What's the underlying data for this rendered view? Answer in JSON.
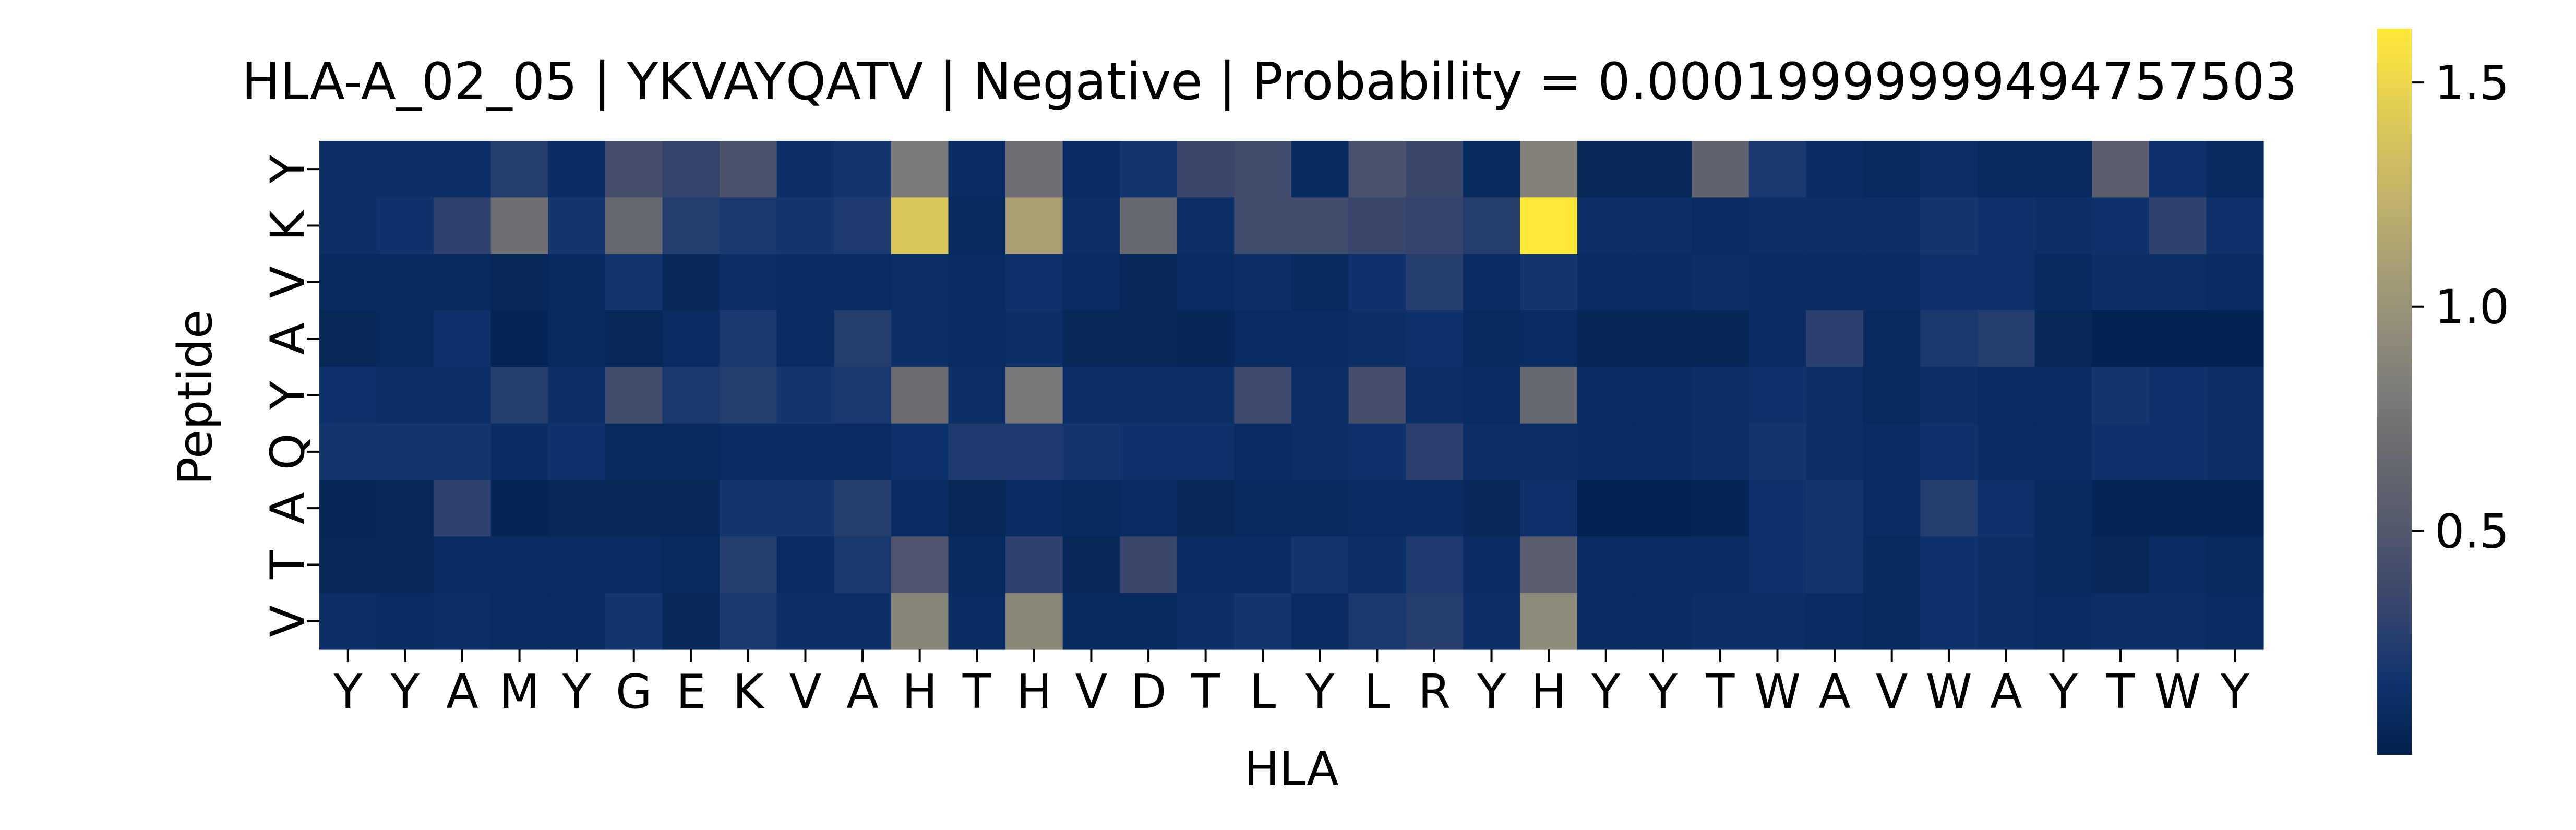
{
  "chart_data": {
    "type": "heatmap",
    "title": "HLA-A_02_05 | YKVAYQATV | Negative | Probability = 0.00019999999494757503",
    "xlabel": "HLA",
    "ylabel": "Peptide",
    "x_categories": [
      "Y",
      "Y",
      "A",
      "M",
      "Y",
      "G",
      "E",
      "K",
      "V",
      "A",
      "H",
      "T",
      "H",
      "V",
      "D",
      "T",
      "L",
      "Y",
      "L",
      "R",
      "Y",
      "H",
      "Y",
      "Y",
      "T",
      "W",
      "A",
      "V",
      "W",
      "A",
      "Y",
      "T",
      "W",
      "Y"
    ],
    "y_categories": [
      "Y",
      "K",
      "V",
      "A",
      "Y",
      "Q",
      "A",
      "T",
      "V"
    ],
    "colorbar": {
      "colormap": "cividis",
      "vmin": 0.0,
      "vmax": 1.62,
      "ticks": [
        0.5,
        1.0,
        1.5
      ],
      "tick_labels": [
        "0.5",
        "1.0",
        "1.5"
      ]
    },
    "grid": false,
    "values": [
      [
        0.12,
        0.12,
        0.12,
        0.25,
        0.1,
        0.42,
        0.32,
        0.45,
        0.12,
        0.18,
        0.8,
        0.1,
        0.72,
        0.1,
        0.18,
        0.35,
        0.4,
        0.08,
        0.45,
        0.35,
        0.08,
        0.85,
        0.06,
        0.06,
        0.6,
        0.2,
        0.1,
        0.08,
        0.12,
        0.08,
        0.08,
        0.55,
        0.15,
        0.08
      ],
      [
        0.12,
        0.15,
        0.3,
        0.72,
        0.18,
        0.65,
        0.25,
        0.2,
        0.18,
        0.22,
        1.4,
        0.08,
        1.1,
        0.12,
        0.65,
        0.12,
        0.4,
        0.4,
        0.35,
        0.32,
        0.25,
        1.62,
        0.12,
        0.12,
        0.1,
        0.12,
        0.12,
        0.12,
        0.18,
        0.15,
        0.12,
        0.15,
        0.3,
        0.15
      ],
      [
        0.08,
        0.08,
        0.08,
        0.06,
        0.08,
        0.18,
        0.06,
        0.12,
        0.1,
        0.1,
        0.12,
        0.1,
        0.15,
        0.1,
        0.06,
        0.1,
        0.12,
        0.08,
        0.15,
        0.25,
        0.1,
        0.18,
        0.1,
        0.1,
        0.12,
        0.1,
        0.1,
        0.1,
        0.15,
        0.15,
        0.08,
        0.12,
        0.12,
        0.1
      ],
      [
        0.06,
        0.08,
        0.15,
        0.04,
        0.08,
        0.06,
        0.1,
        0.2,
        0.1,
        0.25,
        0.12,
        0.1,
        0.12,
        0.06,
        0.06,
        0.05,
        0.1,
        0.1,
        0.12,
        0.15,
        0.08,
        0.1,
        0.05,
        0.05,
        0.05,
        0.1,
        0.28,
        0.08,
        0.2,
        0.25,
        0.06,
        0.02,
        0.02,
        0.02
      ],
      [
        0.15,
        0.12,
        0.12,
        0.25,
        0.12,
        0.4,
        0.2,
        0.25,
        0.18,
        0.2,
        0.68,
        0.12,
        0.78,
        0.12,
        0.12,
        0.12,
        0.38,
        0.12,
        0.42,
        0.12,
        0.1,
        0.65,
        0.1,
        0.1,
        0.12,
        0.15,
        0.12,
        0.08,
        0.12,
        0.1,
        0.1,
        0.18,
        0.15,
        0.12
      ],
      [
        0.18,
        0.18,
        0.18,
        0.1,
        0.15,
        0.08,
        0.08,
        0.1,
        0.1,
        0.1,
        0.15,
        0.22,
        0.22,
        0.18,
        0.15,
        0.15,
        0.1,
        0.12,
        0.15,
        0.28,
        0.12,
        0.12,
        0.1,
        0.1,
        0.12,
        0.18,
        0.12,
        0.1,
        0.15,
        0.1,
        0.1,
        0.15,
        0.15,
        0.12
      ],
      [
        0.05,
        0.06,
        0.3,
        0.04,
        0.06,
        0.06,
        0.06,
        0.18,
        0.18,
        0.25,
        0.1,
        0.06,
        0.1,
        0.08,
        0.1,
        0.06,
        0.08,
        0.08,
        0.1,
        0.1,
        0.06,
        0.15,
        0.02,
        0.02,
        0.04,
        0.15,
        0.18,
        0.1,
        0.25,
        0.15,
        0.08,
        0.04,
        0.04,
        0.04
      ],
      [
        0.06,
        0.06,
        0.1,
        0.1,
        0.1,
        0.1,
        0.08,
        0.25,
        0.1,
        0.2,
        0.48,
        0.08,
        0.3,
        0.06,
        0.35,
        0.1,
        0.1,
        0.18,
        0.12,
        0.22,
        0.1,
        0.55,
        0.1,
        0.1,
        0.1,
        0.15,
        0.18,
        0.08,
        0.15,
        0.12,
        0.08,
        0.06,
        0.1,
        0.08
      ],
      [
        0.12,
        0.1,
        0.12,
        0.1,
        0.1,
        0.18,
        0.06,
        0.2,
        0.12,
        0.12,
        0.88,
        0.1,
        0.9,
        0.08,
        0.08,
        0.12,
        0.18,
        0.1,
        0.2,
        0.25,
        0.12,
        0.92,
        0.1,
        0.1,
        0.12,
        0.12,
        0.1,
        0.08,
        0.15,
        0.12,
        0.1,
        0.12,
        0.12,
        0.1
      ]
    ]
  }
}
